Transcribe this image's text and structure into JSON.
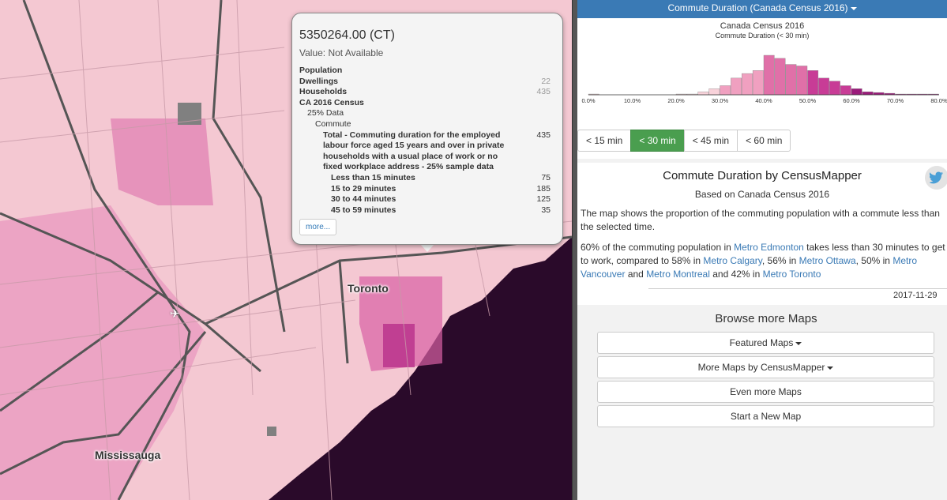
{
  "map": {
    "labels": {
      "toronto": "Toronto",
      "mississauga": "Mississauga"
    },
    "airport_icon": "airplane-icon",
    "colors": {
      "base": "#f4c8d2",
      "water": "#2a0a2a",
      "highlight": "#c83c96",
      "nodata": "#808080"
    }
  },
  "popup": {
    "title": "5350264.00 (CT)",
    "value": "Value: Not Available",
    "rows": [
      {
        "label": "Population",
        "value": "",
        "indent": 0,
        "bold": true
      },
      {
        "label": "Dwellings",
        "value": "22",
        "indent": 0,
        "bold": true
      },
      {
        "label": "Households",
        "value": "435",
        "indent": 0,
        "bold": true
      },
      {
        "label": "CA 2016 Census",
        "value": "",
        "indent": 0,
        "bold": true
      },
      {
        "label": "25% Data",
        "value": "",
        "indent": 1,
        "bold": false
      },
      {
        "label": "Commute",
        "value": "",
        "indent": 2,
        "bold": false
      },
      {
        "label": "Total - Commuting duration for the employed labour force aged 15 years and over in private households with a usual place of work or no fixed workplace address - 25% sample data",
        "value": "435",
        "indent": 3,
        "bold": true
      },
      {
        "label": "Less than 15 minutes",
        "value": "75",
        "indent": 4,
        "bold": true
      },
      {
        "label": "15 to 29 minutes",
        "value": "185",
        "indent": 4,
        "bold": true
      },
      {
        "label": "30 to 44 minutes",
        "value": "125",
        "indent": 4,
        "bold": true
      },
      {
        "label": "45 to 59 minutes",
        "value": "35",
        "indent": 4,
        "bold": true
      }
    ],
    "more_label": "more..."
  },
  "sidebar": {
    "header": "Commute Duration (Canada Census 2016)",
    "chart_title": "Canada Census 2016",
    "chart_subtitle": "Commute Duration (< 30 min)",
    "tabs": [
      {
        "label": "< 15 min",
        "active": false
      },
      {
        "label": "< 30 min",
        "active": true
      },
      {
        "label": "< 45 min",
        "active": false
      },
      {
        "label": "< 60 min",
        "active": false
      }
    ],
    "desc_title": "Commute Duration by CensusMapper",
    "desc_sub": "Based on Canada Census 2016",
    "desc_p1": "The map shows the proportion of the commuting population with a commute less than the selected time.",
    "desc_p2": {
      "t1": "60% of the commuting population in ",
      "l1": "Metro Edmonton",
      "t2": " takes less than 30 minutes to get to work, compared to 58% in ",
      "l2": "Metro Calgary",
      "t3": ", 56% in ",
      "l3": "Metro Ottawa",
      "t4": ", 50% in ",
      "l4": "Metro Vancouver",
      "t5": " and ",
      "l5": "Metro Montreal",
      "t6": " and 42% in ",
      "l6": "Metro Toronto"
    },
    "date": "2017-11-29",
    "browse_title": "Browse more Maps",
    "menu": [
      {
        "label": "Featured Maps",
        "caret": true
      },
      {
        "label": "More Maps by CensusMapper",
        "caret": true
      },
      {
        "label": "Even more Maps",
        "caret": false
      },
      {
        "label": "Start a New Map",
        "caret": false
      }
    ],
    "twitter_icon": "twitter-icon"
  },
  "chart_data": {
    "type": "bar",
    "title": "Canada Census 2016",
    "subtitle": "Commute Duration (< 30 min)",
    "tick_labels": [
      "0.0%",
      "10.0%",
      "20.0%",
      "30.0%",
      "40.0%",
      "50.0%",
      "60.0%",
      "70.0%",
      "80.0%"
    ],
    "xlim": [
      0,
      80
    ],
    "x": [
      0,
      2.5,
      5,
      7.5,
      10,
      12.5,
      15,
      17.5,
      20,
      22.5,
      25,
      27.5,
      30,
      32.5,
      35,
      37.5,
      40,
      42.5,
      45,
      47.5,
      50,
      52.5,
      55,
      57.5,
      60,
      62.5,
      65,
      67.5,
      70,
      72.5,
      75,
      77.5
    ],
    "values": [
      1,
      0,
      0,
      0,
      0,
      0,
      0,
      0,
      1,
      1,
      4,
      8,
      12,
      22,
      28,
      32,
      52,
      48,
      40,
      38,
      32,
      22,
      18,
      12,
      8,
      4,
      3,
      2,
      1,
      1,
      1,
      1
    ]
  }
}
